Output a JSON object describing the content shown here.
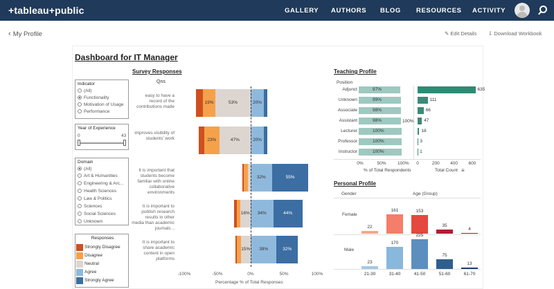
{
  "header": {
    "logo": "+tableau+public",
    "nav": [
      "GALLERY",
      "AUTHORS",
      "BLOG",
      "RESOURCES",
      "ACTIVITY"
    ]
  },
  "toolbar": {
    "back": "My Profile",
    "edit": "Edit Details",
    "download": "Download Workbook"
  },
  "dashboard": {
    "title": "Dashboard for IT Manager"
  },
  "filters": {
    "indicator": {
      "title": "Indicator",
      "options": [
        "(All)",
        "Functionality",
        "Motivation of Usage",
        "Performance"
      ],
      "selected": "Functionality"
    },
    "year": {
      "title": "Year of Experience",
      "min": "0",
      "max": "43"
    },
    "domain": {
      "title": "Domain",
      "options": [
        "(All)",
        "Art & Humanities",
        "Engineering & Arc...",
        "Health Sciences",
        "Law & Politics",
        "Sciences",
        "Social Sciences",
        "Unknown"
      ],
      "selected": "(All)"
    }
  },
  "legend": {
    "title": "Responses",
    "items": [
      {
        "label": "Strongly Disagree",
        "color": "#cf4f1f"
      },
      {
        "label": "Disagree",
        "color": "#f5a14a"
      },
      {
        "label": "Neutral",
        "color": "#ddd5d0"
      },
      {
        "label": "Agree",
        "color": "#8fb9dc"
      },
      {
        "label": "Strongly Agree",
        "color": "#3c6ea3"
      }
    ]
  },
  "survey": {
    "title": "Survey Responses",
    "qns_header": "Qns",
    "questions": [
      {
        "label": "easy to have a record of the contributions made",
        "segs": [
          -10,
          -19,
          -53,
          20,
          5
        ],
        "labels": [
          "19%",
          "53%",
          "20%"
        ]
      },
      {
        "label": "improves visibility of students' work",
        "segs": [
          -8,
          -23,
          -47,
          20,
          5
        ],
        "labels": [
          "23%",
          "47%",
          "20%"
        ]
      },
      {
        "label": "It is important that students become familiar with online collaborative environments",
        "segs": [
          -3,
          -6,
          -4,
          32,
          55
        ],
        "labels": [
          "32%",
          "55%"
        ]
      },
      {
        "label": "It is important to publish research results in other media than academic journals ..",
        "segs": [
          -4,
          -5,
          -16,
          34,
          44
        ],
        "labels": [
          "16%",
          "34%",
          "44%"
        ]
      },
      {
        "label": "It is important to share academic content in open platforms",
        "segs": [
          -2,
          -6,
          -15,
          39,
          32
        ],
        "labels": [
          "15%",
          "39%",
          "32%"
        ]
      }
    ],
    "x_ticks": [
      "-100%",
      "-50%",
      "0%",
      "50%",
      "100%"
    ],
    "x_title": "Percentage % of Total Responses"
  },
  "teaching": {
    "title": "Teaching Profile",
    "col_header": "Position",
    "rows": [
      {
        "pos": "Adjunct",
        "pct": "97%",
        "pct_value": 97,
        "count": 635
      },
      {
        "pos": "Unknown",
        "pct": "99%",
        "pct_value": 99,
        "count": 111
      },
      {
        "pos": "Associate",
        "pct": "98%",
        "pct_value": 98,
        "count": 66
      },
      {
        "pos": "Assistant",
        "pct": "98%",
        "pct_value": 98,
        "count": 47
      },
      {
        "pos": "Lecturer",
        "pct": "100%",
        "pct_value": 100,
        "count": 18
      },
      {
        "pos": "Professor",
        "pct": "100%",
        "pct_value": 100,
        "count": 3
      },
      {
        "pos": "Instructor",
        "pct": "100%",
        "pct_value": 100,
        "count": 1
      }
    ],
    "mid_label": "100%",
    "pct_ticks": [
      "0%",
      "50%",
      "100%"
    ],
    "pct_title": "% of Total Respondents",
    "count_ticks": [
      "0",
      "200",
      "400",
      "600"
    ],
    "count_title": "Total Count"
  },
  "personal": {
    "title": "Personal Profile",
    "gender_header": "Gender",
    "age_header": "Age (Group)",
    "genders": [
      "Female",
      "Male"
    ],
    "ages": [
      "21-30",
      "31-40",
      "41-50",
      "51-60",
      "61-70"
    ],
    "female": [
      22,
      161,
      153,
      35,
      4
    ],
    "male": [
      23,
      170,
      225,
      75,
      13
    ],
    "colors_female": [
      "#f2a88e",
      "#f47e6a",
      "#e5483d",
      "#b21d35",
      "#8c1a2a"
    ],
    "colors_male": [
      "#a6c8e3",
      "#89b8dc",
      "#5c8fbf",
      "#2d5f8e",
      "#1c3f66"
    ]
  },
  "chart_data": [
    {
      "type": "bar",
      "title": "Survey Responses",
      "categories": [
        "easy to have a record of the contributions made",
        "improves visibility of students' work",
        "It is important that students become familiar with online collaborative environments",
        "It is important to publish research results in other media than academic journals ..",
        "It is important to share academic content in open platforms"
      ],
      "series": [
        {
          "name": "Strongly Disagree",
          "values": [
            10,
            8,
            3,
            4,
            2
          ]
        },
        {
          "name": "Disagree",
          "values": [
            19,
            23,
            6,
            5,
            6
          ]
        },
        {
          "name": "Neutral",
          "values": [
            53,
            47,
            4,
            16,
            15
          ]
        },
        {
          "name": "Agree",
          "values": [
            20,
            20,
            32,
            34,
            39
          ]
        },
        {
          "name": "Strongly Agree",
          "values": [
            5,
            5,
            55,
            44,
            32
          ]
        }
      ],
      "xlabel": "Percentage % of Total Responses",
      "xlim": [
        -100,
        100
      ]
    },
    {
      "type": "bar",
      "title": "Teaching Profile",
      "categories": [
        "Adjunct",
        "Unknown",
        "Associate",
        "Assistant",
        "Lecturer",
        "Professor",
        "Instructor"
      ],
      "series": [
        {
          "name": "% of Total Respondents",
          "values": [
            97,
            99,
            98,
            98,
            100,
            100,
            100
          ]
        },
        {
          "name": "Total Count",
          "values": [
            635,
            111,
            66,
            47,
            18,
            3,
            1
          ]
        }
      ]
    },
    {
      "type": "bar",
      "title": "Personal Profile",
      "categories": [
        "21-30",
        "31-40",
        "41-50",
        "51-60",
        "61-70"
      ],
      "series": [
        {
          "name": "Female",
          "values": [
            22,
            161,
            153,
            35,
            4
          ]
        },
        {
          "name": "Male",
          "values": [
            23,
            170,
            225,
            75,
            13
          ]
        }
      ]
    }
  ]
}
